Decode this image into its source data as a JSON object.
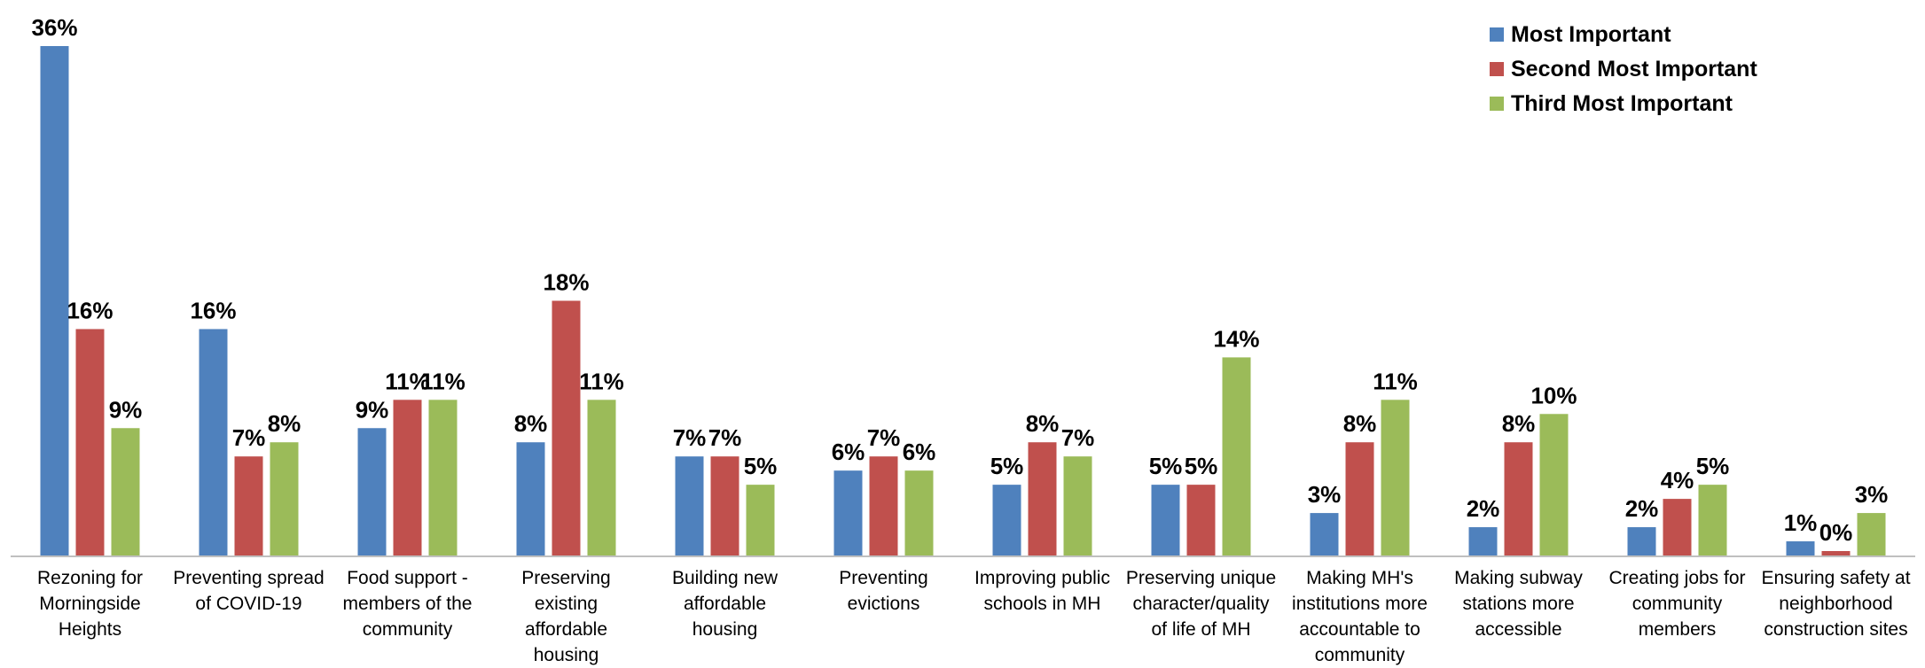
{
  "chart_data": {
    "type": "bar",
    "title": "",
    "xlabel": "",
    "ylabel": "",
    "ylim": [
      0,
      36
    ],
    "grid": false,
    "legend_position": "top-right",
    "categories": [
      [
        "Rezoning for",
        "Morningside",
        "Heights"
      ],
      [
        "Preventing spread",
        "of COVID-19"
      ],
      [
        "Food support -",
        "members of the",
        "community"
      ],
      [
        "Preserving",
        "existing",
        "affordable",
        "housing"
      ],
      [
        "Building new",
        "affordable",
        "housing"
      ],
      [
        "Preventing",
        "evictions"
      ],
      [
        "Improving public",
        "schools in MH"
      ],
      [
        "Preserving unique",
        "character/quality",
        "of life of MH"
      ],
      [
        "Making MH's",
        "institutions more",
        "accountable to",
        "community"
      ],
      [
        "Making subway",
        "stations more",
        "accessible"
      ],
      [
        "Creating jobs for",
        "community",
        "members"
      ],
      [
        "Ensuring safety at",
        "neighborhood",
        "construction sites"
      ]
    ],
    "series": [
      {
        "name": "Most Important",
        "color": "#4F81BD",
        "values": [
          36,
          16,
          9,
          8,
          7,
          6,
          5,
          5,
          3,
          2,
          2,
          1
        ]
      },
      {
        "name": "Second Most Important",
        "color": "#C0504D",
        "values": [
          16,
          7,
          11,
          18,
          7,
          7,
          8,
          5,
          8,
          8,
          4,
          0
        ]
      },
      {
        "name": "Third Most Important",
        "color": "#9BBB59",
        "values": [
          9,
          8,
          11,
          11,
          5,
          6,
          7,
          14,
          11,
          10,
          5,
          3
        ]
      }
    ],
    "value_suffix": "%"
  }
}
